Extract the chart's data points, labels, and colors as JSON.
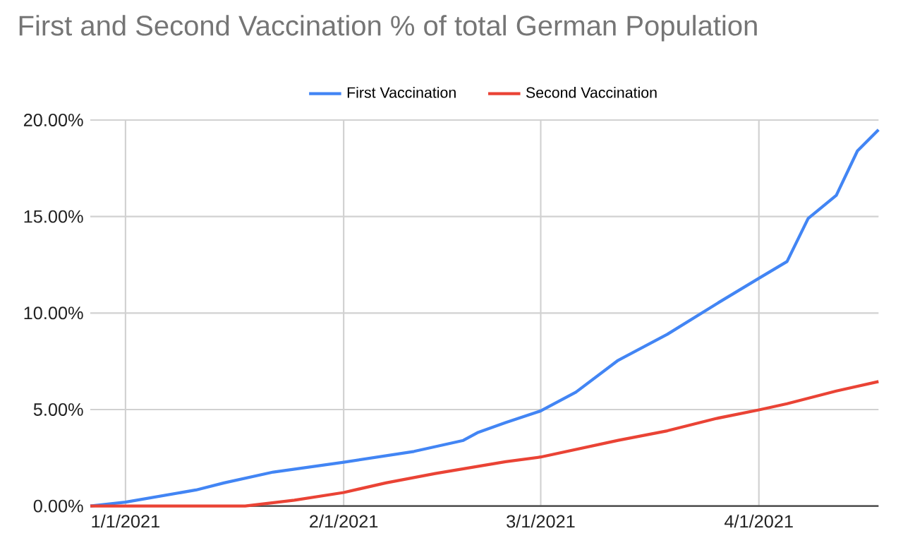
{
  "chart_data": {
    "type": "line",
    "title": "First and Second Vaccination % of total German Population",
    "xlim": [
      "2020-12-27",
      "2021-04-18"
    ],
    "xticks": [
      {
        "value": "2021-01-01",
        "label": "1/1/2021"
      },
      {
        "value": "2021-02-01",
        "label": "2/1/2021"
      },
      {
        "value": "2021-03-01",
        "label": "3/1/2021"
      },
      {
        "value": "2021-04-01",
        "label": "4/1/2021"
      }
    ],
    "ylim": [
      0,
      20
    ],
    "yticks": [
      {
        "value": 0,
        "label": "0.00%"
      },
      {
        "value": 5,
        "label": "5.00%"
      },
      {
        "value": 10,
        "label": "10.00%"
      },
      {
        "value": 15,
        "label": "15.00%"
      },
      {
        "value": 20,
        "label": "20.00%"
      }
    ],
    "grid": true,
    "legend": "top",
    "marker": "none",
    "line_style": "solid",
    "series": [
      {
        "name": "First Vaccination",
        "color": "#4285f4",
        "x": [
          "2020-12-27",
          "2021-01-01",
          "2021-01-11",
          "2021-01-15",
          "2021-01-22",
          "2021-02-01",
          "2021-02-11",
          "2021-02-18",
          "2021-02-20",
          "2021-02-24",
          "2021-03-01",
          "2021-03-06",
          "2021-03-12",
          "2021-03-19",
          "2021-03-26",
          "2021-04-01",
          "2021-04-05",
          "2021-04-08",
          "2021-04-12",
          "2021-04-15",
          "2021-04-18"
        ],
        "values": [
          0,
          0.2,
          0.83,
          1.2,
          1.76,
          2.27,
          2.83,
          3.4,
          3.8,
          4.32,
          4.93,
          5.9,
          7.55,
          8.9,
          10.48,
          11.8,
          12.67,
          14.9,
          16.1,
          18.4,
          19.5
        ]
      },
      {
        "name": "Second Vaccination",
        "color": "#ea4335",
        "x": [
          "2020-12-27",
          "2021-01-18",
          "2021-01-25",
          "2021-02-01",
          "2021-02-07",
          "2021-02-14",
          "2021-02-24",
          "2021-03-01",
          "2021-03-12",
          "2021-03-19",
          "2021-03-26",
          "2021-04-01",
          "2021-04-05",
          "2021-04-12",
          "2021-04-18"
        ],
        "values": [
          0,
          0,
          0.3,
          0.7,
          1.2,
          1.68,
          2.3,
          2.54,
          3.4,
          3.9,
          4.54,
          4.98,
          5.3,
          5.96,
          6.45
        ]
      }
    ]
  }
}
